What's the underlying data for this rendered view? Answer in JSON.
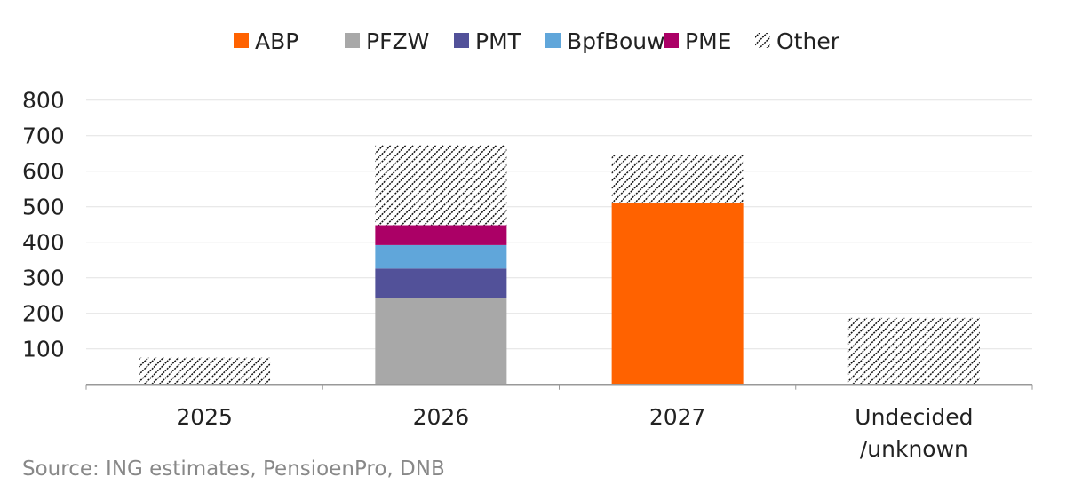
{
  "chart_data": {
    "type": "bar",
    "stacked": true,
    "title": "",
    "xlabel": "",
    "ylabel": "",
    "ylim": [
      0,
      800
    ],
    "yticks": [
      100,
      200,
      300,
      400,
      500,
      600,
      700,
      800
    ],
    "grid": true,
    "legend_position": "top",
    "categories": [
      "2025",
      "2026",
      "2027",
      "Undecided\n/unknown"
    ],
    "category_lines": [
      [
        "2025"
      ],
      [
        "2026"
      ],
      [
        "2027"
      ],
      [
        "Undecided",
        "/unknown"
      ]
    ],
    "series": [
      {
        "name": "ABP",
        "color": "#FF6200",
        "values": [
          0,
          0,
          512,
          0
        ]
      },
      {
        "name": "PFZW",
        "color": "#A8A8A8",
        "values": [
          0,
          242,
          0,
          0
        ]
      },
      {
        "name": "PMT",
        "color": "#525199",
        "values": [
          0,
          84,
          0,
          0
        ]
      },
      {
        "name": "BpfBouw",
        "color": "#60A6DA",
        "values": [
          0,
          66,
          0,
          0
        ]
      },
      {
        "name": "PME",
        "color": "#AB0066",
        "values": [
          0,
          56,
          0,
          0
        ]
      },
      {
        "name": "Other",
        "color": "hatch",
        "values": [
          75,
          225,
          134,
          187
        ]
      }
    ],
    "source": "Source: ING estimates, PensioenPro, DNB"
  }
}
